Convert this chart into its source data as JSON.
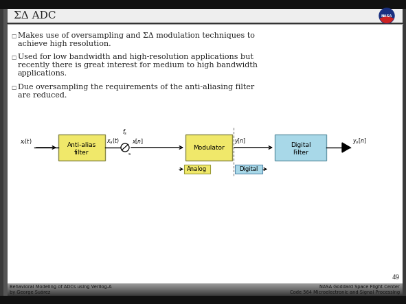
{
  "title": "ΣΔ ADC",
  "slide_bg": "#f5f5f5",
  "outer_bg": "#3a3a3a",
  "header_line_color": "#222222",
  "sidebar_color": "#555555",
  "bullet1_line1": "Makes use of oversampling and ΣΔ modulation techniques to",
  "bullet1_line2": "achieve high resolution.",
  "bullet2_line1": "Used for low bandwidth and high-resolution applications but",
  "bullet2_line2": "recently there is great interest for medium to high bandwidth",
  "bullet2_line3": "applications.",
  "bullet3_line1": "Due oversampling the requirements of the anti-aliasing filter",
  "bullet3_line2": "are reduced.",
  "footer_left1": "Behavioral Modeling of ADCs using Verilog-A",
  "footer_left2": "by George Suárez",
  "footer_right1": "NASA Goddard Space Flight Center",
  "footer_right2": "Code 564 Microelectronic and Signal Processing",
  "page_num": "49",
  "antialias_color": "#f0e86a",
  "modulator_color": "#f0e86a",
  "digfilter_color": "#a8d8e8",
  "analog_lbl_color": "#f0e86a",
  "digital_lbl_color": "#a8d8e8",
  "box_edge_color": "#888844",
  "digbox_edge_color": "#6699aa"
}
